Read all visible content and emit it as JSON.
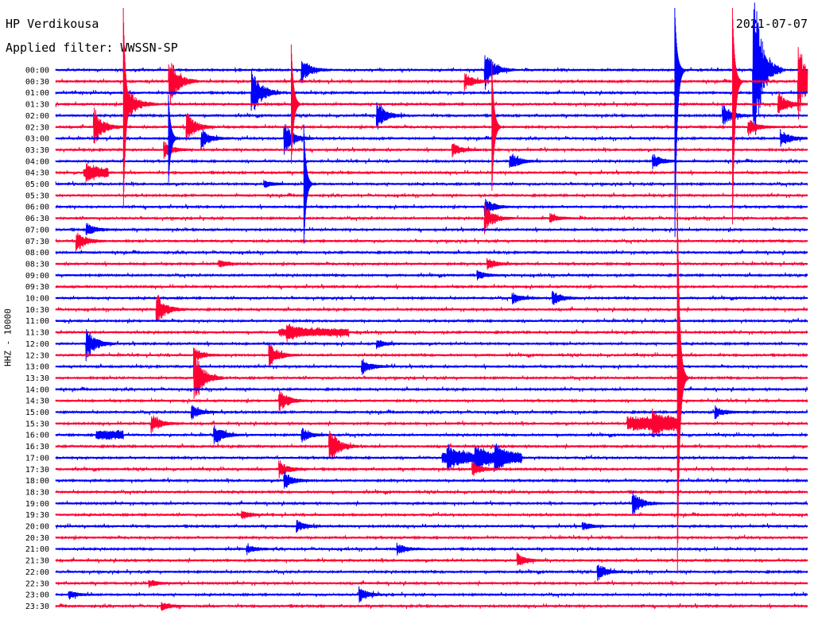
{
  "header": {
    "station": "HP Verdikousa",
    "filter": "Applied filter: WWSSN-SP",
    "date": "2021-07-07"
  },
  "axis": {
    "ylabel": "HHZ - 10000"
  },
  "colors": {
    "blue": "#0000ff",
    "red": "#ff0033"
  },
  "chart_data": {
    "type": "line",
    "subtype": "helicorder",
    "row_minutes": 30,
    "x_range_minutes": [
      0,
      30
    ],
    "color_cycle": [
      "blue",
      "red"
    ],
    "rows": [
      "00:00",
      "00:30",
      "01:00",
      "01:30",
      "02:00",
      "02:30",
      "03:00",
      "03:30",
      "04:00",
      "04:30",
      "05:00",
      "05:30",
      "06:00",
      "06:30",
      "07:00",
      "07:30",
      "08:00",
      "08:30",
      "09:00",
      "09:30",
      "10:00",
      "10:30",
      "11:00",
      "11:30",
      "12:00",
      "12:30",
      "13:00",
      "13:30",
      "14:00",
      "14:30",
      "15:00",
      "15:30",
      "16:00",
      "16:30",
      "17:00",
      "17:30",
      "18:00",
      "18:30",
      "19:00",
      "19:30",
      "20:00",
      "20:30",
      "21:00",
      "21:30",
      "22:00",
      "22:30",
      "23:00",
      "23:30"
    ],
    "events": [
      {
        "row": "00:00",
        "minute": 27.8,
        "amp": 130
      },
      {
        "row": "00:00",
        "minute": 17.1,
        "amp": 30
      },
      {
        "row": "00:00",
        "minute": 9.8,
        "amp": 18
      },
      {
        "row": "00:30",
        "minute": 4.5,
        "amp": 40
      },
      {
        "row": "00:30",
        "minute": 29.6,
        "amp": 55
      },
      {
        "row": "00:30",
        "minute": 16.3,
        "amp": 12
      },
      {
        "row": "01:00",
        "minute": 7.8,
        "amp": 40
      },
      {
        "row": "01:30",
        "minute": 2.9,
        "amp": 22
      },
      {
        "row": "01:30",
        "minute": 28.8,
        "amp": 18
      },
      {
        "row": "02:00",
        "minute": 12.8,
        "amp": 20
      },
      {
        "row": "02:00",
        "minute": 26.6,
        "amp": 16
      },
      {
        "row": "02:30",
        "minute": 1.5,
        "amp": 28
      },
      {
        "row": "02:30",
        "minute": 5.2,
        "amp": 22
      },
      {
        "row": "02:30",
        "minute": 27.6,
        "amp": 12
      },
      {
        "row": "03:00",
        "minute": 5.8,
        "amp": 14
      },
      {
        "row": "03:00",
        "minute": 9.1,
        "amp": 22
      },
      {
        "row": "03:00",
        "minute": 28.9,
        "amp": 12
      },
      {
        "row": "03:30",
        "minute": 4.3,
        "amp": 12
      },
      {
        "row": "03:30",
        "minute": 15.8,
        "amp": 10
      },
      {
        "row": "04:00",
        "minute": 18.1,
        "amp": 14
      },
      {
        "row": "04:00",
        "minute": 23.8,
        "amp": 10
      },
      {
        "row": "04:30",
        "minute": 1.2,
        "amp": 8
      },
      {
        "row": "05:00",
        "minute": 8.3,
        "amp": 5
      },
      {
        "row": "06:00",
        "minute": 17.1,
        "amp": 12
      },
      {
        "row": "06:30",
        "minute": 17.1,
        "amp": 20
      },
      {
        "row": "06:30",
        "minute": 19.7,
        "amp": 6
      },
      {
        "row": "07:00",
        "minute": 1.2,
        "amp": 10
      },
      {
        "row": "07:30",
        "minute": 0.8,
        "amp": 16
      },
      {
        "row": "08:30",
        "minute": 17.2,
        "amp": 8
      },
      {
        "row": "08:30",
        "minute": 6.5,
        "amp": 5
      },
      {
        "row": "09:00",
        "minute": 16.8,
        "amp": 6
      },
      {
        "row": "10:00",
        "minute": 18.2,
        "amp": 8
      },
      {
        "row": "10:00",
        "minute": 19.8,
        "amp": 10
      },
      {
        "row": "10:30",
        "minute": 4.0,
        "amp": 24
      },
      {
        "row": "11:30",
        "minute": 9.2,
        "amp": 10
      },
      {
        "row": "12:00",
        "minute": 1.2,
        "amp": 24
      },
      {
        "row": "12:00",
        "minute": 12.8,
        "amp": 6
      },
      {
        "row": "12:30",
        "minute": 8.5,
        "amp": 18
      },
      {
        "row": "12:30",
        "minute": 5.5,
        "amp": 10
      },
      {
        "row": "13:00",
        "minute": 12.2,
        "amp": 12
      },
      {
        "row": "13:30",
        "minute": 5.5,
        "amp": 42
      },
      {
        "row": "14:30",
        "minute": 8.9,
        "amp": 16
      },
      {
        "row": "15:00",
        "minute": 5.4,
        "amp": 10
      },
      {
        "row": "15:00",
        "minute": 26.3,
        "amp": 8
      },
      {
        "row": "15:30",
        "minute": 3.8,
        "amp": 14
      },
      {
        "row": "15:30",
        "minute": 23.8,
        "amp": 12
      },
      {
        "row": "16:00",
        "minute": 6.3,
        "amp": 16
      },
      {
        "row": "16:00",
        "minute": 9.8,
        "amp": 10
      },
      {
        "row": "16:30",
        "minute": 10.9,
        "amp": 28
      },
      {
        "row": "17:00",
        "minute": 15.6,
        "amp": 14
      },
      {
        "row": "17:00",
        "minute": 16.7,
        "amp": 14
      },
      {
        "row": "17:00",
        "minute": 17.5,
        "amp": 16
      },
      {
        "row": "17:30",
        "minute": 8.9,
        "amp": 12
      },
      {
        "row": "17:30",
        "minute": 16.6,
        "amp": 10
      },
      {
        "row": "18:00",
        "minute": 9.1,
        "amp": 12
      },
      {
        "row": "19:00",
        "minute": 23.0,
        "amp": 18
      },
      {
        "row": "19:30",
        "minute": 7.4,
        "amp": 6
      },
      {
        "row": "20:00",
        "minute": 9.6,
        "amp": 8
      },
      {
        "row": "20:00",
        "minute": 21.0,
        "amp": 6
      },
      {
        "row": "21:00",
        "minute": 13.6,
        "amp": 8
      },
      {
        "row": "21:00",
        "minute": 7.6,
        "amp": 6
      },
      {
        "row": "21:30",
        "minute": 18.4,
        "amp": 10
      },
      {
        "row": "22:00",
        "minute": 21.6,
        "amp": 12
      },
      {
        "row": "22:30",
        "minute": 3.7,
        "amp": 5
      },
      {
        "row": "23:00",
        "minute": 12.1,
        "amp": 10
      },
      {
        "row": "23:00",
        "minute": 0.5,
        "amp": 6
      },
      {
        "row": "23:30",
        "minute": 4.2,
        "amp": 6
      }
    ],
    "large_events": [
      {
        "row": "00:00",
        "minute": 24.7,
        "amp": 420
      },
      {
        "row": "00:30",
        "minute": 27.0,
        "amp": 360
      },
      {
        "row": "01:30",
        "minute": 2.7,
        "amp": 260
      },
      {
        "row": "01:30",
        "minute": 9.4,
        "amp": 150
      },
      {
        "row": "03:00",
        "minute": 4.5,
        "amp": 110
      },
      {
        "row": "02:30",
        "minute": 17.4,
        "amp": 160
      },
      {
        "row": "05:00",
        "minute": 9.9,
        "amp": 150
      },
      {
        "row": "13:30",
        "minute": 24.8,
        "amp": 490
      }
    ],
    "bursts": [
      {
        "row": "04:30",
        "start": 1.1,
        "end": 2.1,
        "amp": 5
      },
      {
        "row": "16:00",
        "start": 1.6,
        "end": 2.7,
        "amp": 5
      },
      {
        "row": "15:30",
        "start": 22.8,
        "end": 24.8,
        "amp": 8
      },
      {
        "row": "11:30",
        "start": 8.9,
        "end": 11.7,
        "amp": 4
      },
      {
        "row": "17:00",
        "start": 15.4,
        "end": 18.6,
        "amp": 6
      }
    ]
  }
}
